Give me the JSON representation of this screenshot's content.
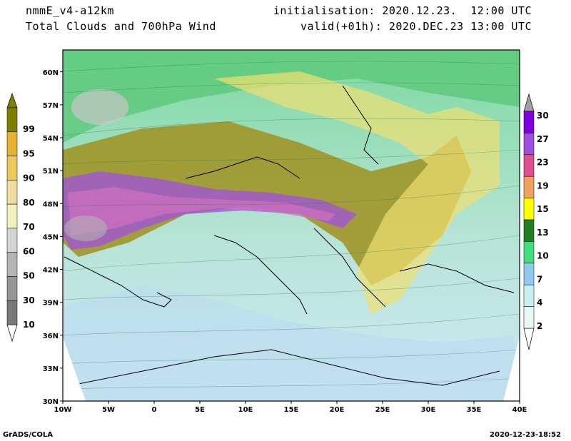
{
  "header": {
    "model": "nmmE_v4-a12km",
    "product": "Total Clouds and 700hPa Wind",
    "init": "initialisation: 2020.12.23.  12:00 UTC",
    "valid": "valid(+01h): 2020.DEC.23 13:00 UTC"
  },
  "footer": {
    "left": "GrADS/COLA",
    "right": "2020-12-23-18:52"
  },
  "map": {
    "lat_labels": [
      "30N",
      "33N",
      "36N",
      "39N",
      "42N",
      "45N",
      "48N",
      "51N",
      "54N",
      "57N",
      "60N"
    ],
    "lon_labels": [
      "10W",
      "5W",
      "0",
      "5E",
      "10E",
      "15E",
      "20E",
      "25E",
      "30E",
      "35E",
      "40E"
    ],
    "lat_range": [
      30,
      62
    ],
    "lon_range": [
      -10,
      40
    ]
  },
  "cloud_scale": {
    "labels": [
      "99",
      "95",
      "90",
      "80",
      "70",
      "60",
      "50",
      "30",
      "10"
    ],
    "colors": [
      "#808000",
      "#e6b32e",
      "#ecc85a",
      "#f0dca0",
      "#f0f0bc",
      "#d4d4d4",
      "#b4b4b4",
      "#969696",
      "#787878",
      "#505050"
    ]
  },
  "wind_scale": {
    "labels": [
      "30",
      "27",
      "23",
      "19",
      "15",
      "13",
      "10",
      "7",
      "4",
      "2"
    ],
    "colors": [
      "#a0a0a0",
      "#8000e0",
      "#a050e0",
      "#e05090",
      "#f0a060",
      "#ffff00",
      "#208020",
      "#40e080",
      "#90c8f0",
      "#c8f0f0",
      "#e8f8f8"
    ]
  }
}
